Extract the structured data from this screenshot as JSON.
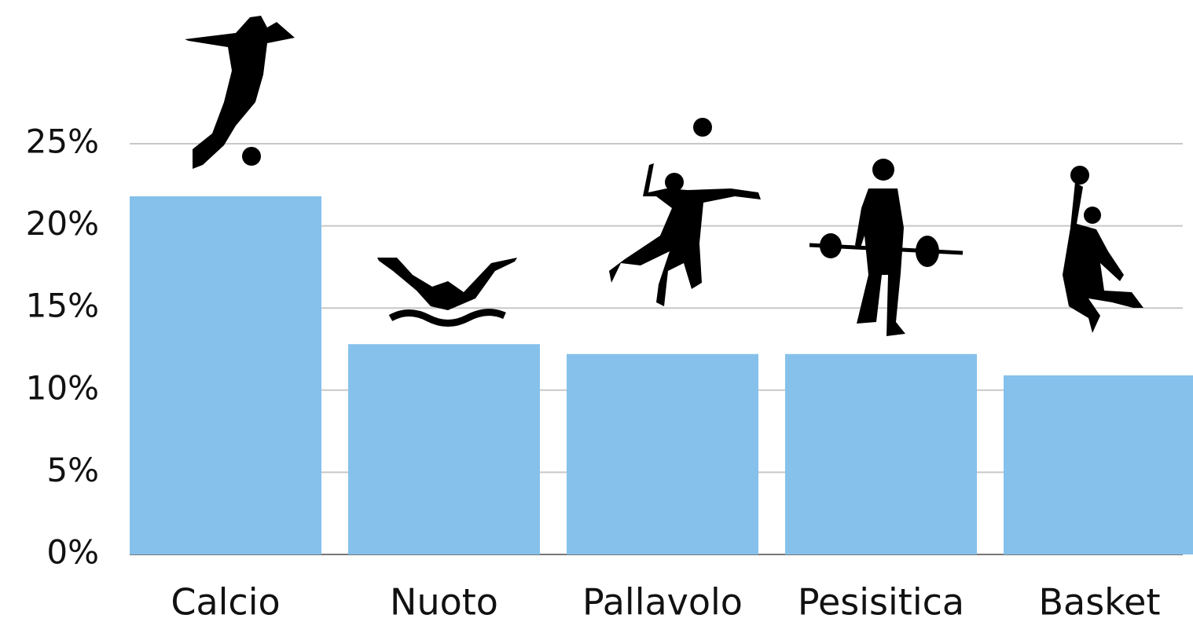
{
  "chart_data": {
    "type": "bar",
    "categories": [
      "Calcio",
      "Nuoto",
      "Pallavolo",
      "Pesisitica",
      "Basket"
    ],
    "values": [
      21.8,
      12.8,
      12.2,
      12.2,
      10.9
    ],
    "color": "#85c1ea",
    "ylim": [
      0,
      25
    ],
    "yticks": [
      {
        "value": 0,
        "label": "0%"
      },
      {
        "value": 5,
        "label": "5%"
      },
      {
        "value": 10,
        "label": "10%"
      },
      {
        "value": 15,
        "label": "15%"
      },
      {
        "value": 20,
        "label": "20%"
      },
      {
        "value": 25,
        "label": "25%"
      }
    ],
    "grid": true
  }
}
